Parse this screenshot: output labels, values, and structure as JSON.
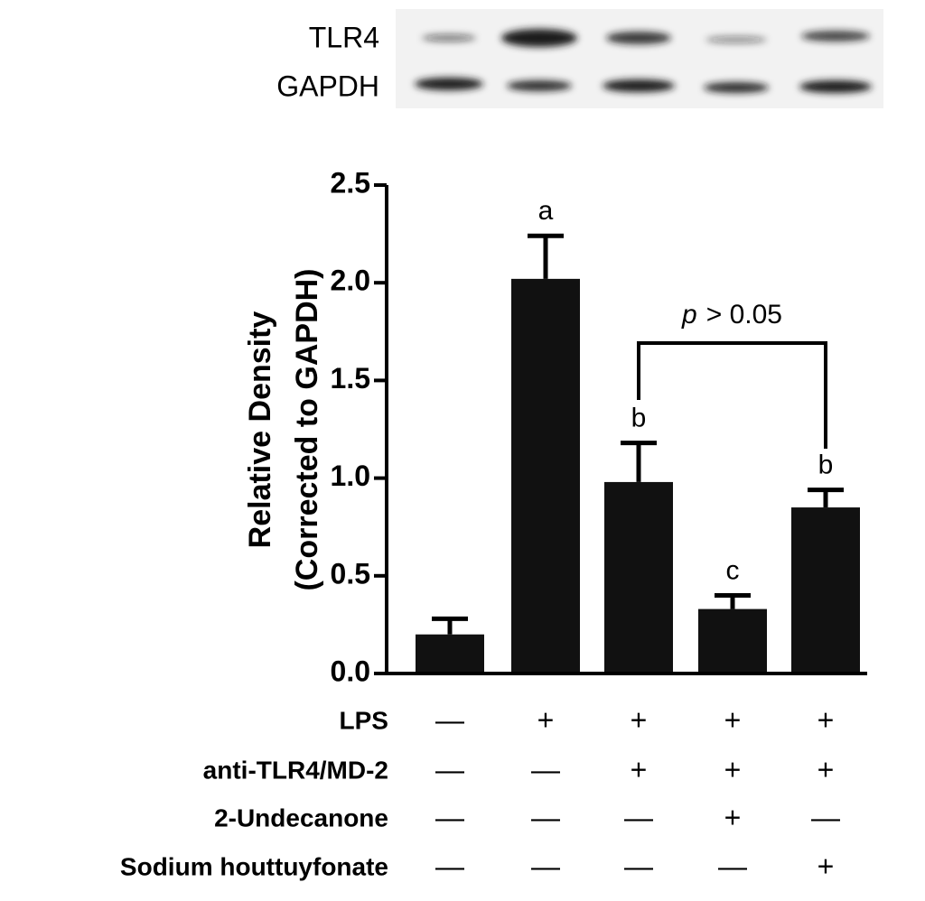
{
  "chart_data": {
    "type": "bar",
    "blot_labels": [
      "TLR4",
      "GAPDH"
    ],
    "ylabel": [
      "Relative Density",
      "(Corrected to GAPDH)"
    ],
    "ylim": [
      0,
      2.5
    ],
    "yticks": [
      {
        "value": 0,
        "label": "0.0"
      },
      {
        "value": 0.5,
        "label": "0.5"
      },
      {
        "value": 1,
        "label": "1.0"
      },
      {
        "value": 1.5,
        "label": "1.5"
      },
      {
        "value": 2,
        "label": "2.0"
      },
      {
        "value": 2.5,
        "label": "2.5"
      }
    ],
    "values": [
      0.2,
      2.02,
      0.98,
      0.33,
      0.85
    ],
    "errors": [
      0.08,
      0.22,
      0.2,
      0.07,
      0.09
    ],
    "color": "#111111",
    "letters": [
      null,
      "a",
      "b",
      "c",
      "b"
    ],
    "bracket": {
      "from": 2,
      "to": 4,
      "italic": "p",
      "text": "> 0.05"
    },
    "conditions": [
      {
        "name": "LPS",
        "signs": [
          "—",
          "+",
          "+",
          "+",
          "+"
        ]
      },
      {
        "name": "anti-TLR4/MD-2",
        "signs": [
          "—",
          "—",
          "+",
          "+",
          "+"
        ]
      },
      {
        "name": "2-Undecanone",
        "signs": [
          "—",
          "—",
          "—",
          "+",
          "—"
        ]
      },
      {
        "name": "Sodium houttuyfonate",
        "signs": [
          "—",
          "—",
          "—",
          "—",
          "+"
        ]
      }
    ]
  }
}
